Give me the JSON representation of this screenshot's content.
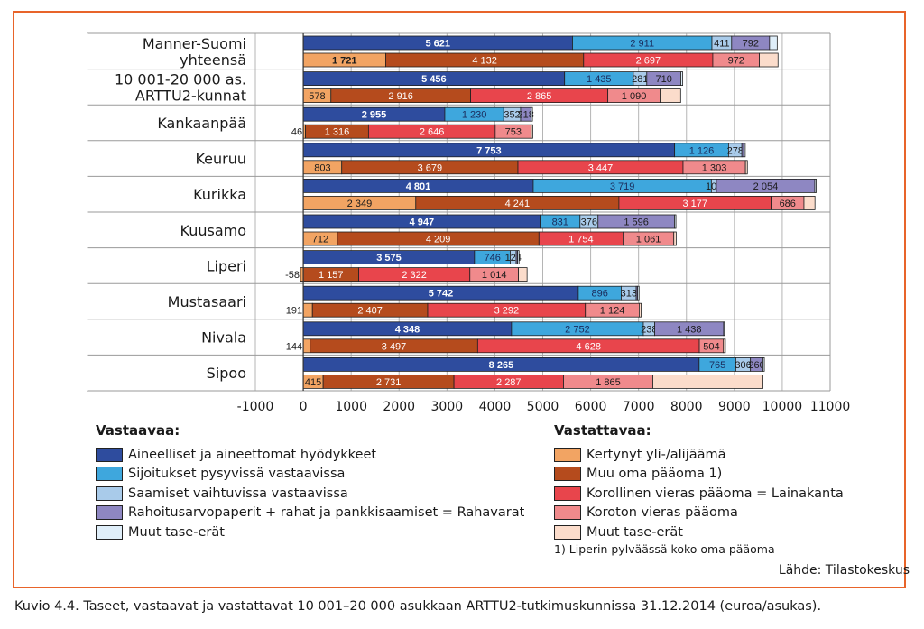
{
  "chart_data": {
    "type": "bar",
    "orientation": "horizontal",
    "stacked": true,
    "title": "Kuvio 4.4. Taseet, vastaavat ja vastattavat 10 001–20 000 asukkaan ARTTU2-tutkimuskunnissa 31.12.2014 (euroa/asukas).",
    "xlim": [
      -1000,
      11000
    ],
    "xticks": [
      "-1000",
      "0",
      "1000",
      "2000",
      "3000",
      "4000",
      "5000",
      "6000",
      "7000",
      "8000",
      "9000",
      "10000",
      "11000"
    ],
    "grid": true,
    "categories": [
      {
        "lines": [
          "Manner-Suomi",
          "yhteensä"
        ]
      },
      {
        "lines": [
          "10 001-20 000 as.",
          "ARTTU2-kunnat"
        ]
      },
      {
        "lines": [
          "Kankaanpää"
        ]
      },
      {
        "lines": [
          "Keuruu"
        ]
      },
      {
        "lines": [
          "Kurikka"
        ]
      },
      {
        "lines": [
          "Kuusamo"
        ]
      },
      {
        "lines": [
          "Liperi"
        ]
      },
      {
        "lines": [
          "Mustasaari"
        ]
      },
      {
        "lines": [
          "Nivala"
        ]
      },
      {
        "lines": [
          "Sipoo"
        ]
      }
    ],
    "groups": [
      {
        "name": "Vastaavaa",
        "series": [
          {
            "name": "Aineelliset ja aineettomat hyödykkeet",
            "color": "#2e4c9e",
            "label_color": "#ffffff",
            "values": [
              5621,
              5456,
              2955,
              7753,
              4801,
              4947,
              3575,
              5742,
              4348,
              8265
            ],
            "labels": [
              "5 621",
              "5 456",
              "2 955",
              "7 753",
              "4 801",
              "4 947",
              "3 575",
              "5 742",
              "4 348",
              "8 265"
            ]
          },
          {
            "name": "Sijoitukset pysyvissä vastaavissa",
            "color": "#3ea7dd",
            "label_color": "#1a2a5a",
            "values": [
              2911,
              1435,
              1230,
              1126,
              3719,
              831,
              746,
              896,
              2752,
              765
            ],
            "labels": [
              "2 911",
              "1 435",
              "1 230",
              "1 126",
              "3 719",
              "831",
              "746",
              "896",
              "2 752",
              "765"
            ]
          },
          {
            "name": "Saamiset vaihtuvissa vastaavissa",
            "color": "#a9cbea",
            "label_color": "#1a1a1a",
            "values": [
              411,
              281,
              352,
              278,
              105,
              376,
              124,
              313,
              238,
              306
            ],
            "labels": [
              "411",
              "281",
              "352",
              "278",
              "105",
              "376",
              "124",
              "313",
              "238",
              "306"
            ]
          },
          {
            "name": "Rahoitusarvopaperit + rahat ja pankkisaamiset = Rahavarat",
            "color": "#8e87c2",
            "label_color": "#1a1a1a",
            "values": [
              792,
              710,
              218,
              40,
              2054,
              1596,
              30,
              30,
              1438,
              260
            ],
            "labels": [
              "792",
              "710",
              "218",
              "",
              "2 054",
              "1 596",
              "",
              "",
              "1 438",
              "260"
            ]
          },
          {
            "name": "Muut tase-erät",
            "color": "#dfeef9",
            "label_color": "#1a1a1a",
            "values": [
              160,
              40,
              30,
              30,
              30,
              30,
              30,
              30,
              20,
              30
            ],
            "labels": [
              "",
              "",
              "",
              "",
              "",
              "",
              "",
              "",
              "",
              ""
            ]
          }
        ]
      },
      {
        "name": "Vastattavaa",
        "series": [
          {
            "name": "Kertynyt yli-/alijäämä",
            "color": "#f2a463",
            "label_color": "#1a1a1a",
            "values": [
              1721,
              578,
              46,
              803,
              2349,
              712,
              -58,
              191,
              144,
              415
            ],
            "labels": [
              "1 721",
              "578",
              "46",
              "803",
              "2 349",
              "712",
              "-58",
              "191",
              "144",
              "415"
            ]
          },
          {
            "name": "Muu oma pääoma 1)",
            "color": "#b54b1d",
            "label_color": "#ffffff",
            "values": [
              4132,
              2916,
              1316,
              3679,
              4241,
              4209,
              1157,
              2407,
              3497,
              2731
            ],
            "labels": [
              "4 132",
              "2 916",
              "1 316",
              "3 679",
              "4 241",
              "4 209",
              "1 157",
              "2 407",
              "3 497",
              "2 731"
            ]
          },
          {
            "name": "Korollinen vieras pääoma = Lainakanta",
            "color": "#e8454c",
            "label_color": "#ffffff",
            "values": [
              2697,
              2865,
              2646,
              3447,
              3177,
              1754,
              2322,
              3292,
              4628,
              2287
            ],
            "labels": [
              "2 697",
              "2 865",
              "2 646",
              "3 447",
              "3 177",
              "1 754",
              "2 322",
              "3 292",
              "4 628",
              "2 287"
            ]
          },
          {
            "name": "Koroton vieras pääoma",
            "color": "#f08a8c",
            "label_color": "#1a1a1a",
            "values": [
              972,
              1090,
              753,
              1303,
              686,
              1061,
              1014,
              1124,
              504,
              1865
            ],
            "labels": [
              "972",
              "1 090",
              "753",
              "1 303",
              "686",
              "1 061",
              "1 014",
              "1 124",
              "504",
              "1 865"
            ]
          },
          {
            "name": "Muut tase-erät",
            "color": "#fbdccb",
            "label_color": "#1a1a1a",
            "values": [
              390,
              430,
              30,
              40,
              230,
              50,
              180,
              40,
              40,
              2300
            ],
            "labels": [
              "",
              "",
              "",
              "",
              "",
              "",
              "",
              "",
              "",
              ""
            ]
          }
        ]
      }
    ]
  },
  "legend": {
    "left_title": "Vastaavaa",
    "left_items": [
      {
        "label": "Aineelliset ja aineettomat hyödykkeet",
        "color": "#2e4c9e"
      },
      {
        "label": "Sijoitukset pysyvissä vastaavissa",
        "color": "#3ea7dd"
      },
      {
        "label": "Saamiset vaihtuvissa vastaavissa",
        "color": "#a9cbea"
      },
      {
        "label": "Rahoitusarvopaperit + rahat ja pankkisaamiset = Rahavarat",
        "color": "#8e87c2"
      },
      {
        "label": "Muut tase-erät",
        "color": "#dfeef9"
      }
    ],
    "right_title": "Vastattavaa",
    "right_items": [
      {
        "label": "Kertynyt yli-/alijäämä",
        "color": "#f2a463"
      },
      {
        "label": "Muu oma pääoma 1)",
        "color": "#b54b1d"
      },
      {
        "label": "Korollinen vieras pääoma = Lainakanta",
        "color": "#e8454c"
      },
      {
        "label": "Koroton vieras pääoma",
        "color": "#f08a8c"
      },
      {
        "label": "Muut tase-erät",
        "color": "#fbdccb"
      }
    ]
  },
  "footnote": "1) Liperin pylväässä koko oma pääoma",
  "source": "Lähde: Tilastokeskus",
  "caption": "Kuvio 4.4. Taseet, vastaavat ja vastattavat 10 001–20 000 asukkaan ARTTU2-tutkimuskunnissa 31.12.2014 (euroa/asukas).",
  "accent_color": "#e8642a"
}
